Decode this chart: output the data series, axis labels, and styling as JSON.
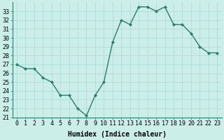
{
  "x": [
    0,
    1,
    2,
    3,
    4,
    5,
    6,
    7,
    8,
    9,
    10,
    11,
    12,
    13,
    14,
    15,
    16,
    17,
    18,
    19,
    20,
    21,
    22,
    23
  ],
  "y": [
    27,
    26.5,
    26.5,
    25.5,
    25,
    23.5,
    23.5,
    22,
    21.2,
    23.5,
    25,
    29.5,
    32,
    31.5,
    33.5,
    33.5,
    33,
    33.5,
    31.5,
    31.5,
    30.5,
    29,
    28.3,
    28.3
  ],
  "line_color": "#2a7d6e",
  "marker": "D",
  "marker_size": 2,
  "bg_color": "#cceee8",
  "grid_color": "#b0ddd5",
  "xlabel": "Humidex (Indice chaleur)",
  "xlim": [
    -0.5,
    23.5
  ],
  "ylim": [
    21,
    34
  ],
  "yticks": [
    21,
    22,
    23,
    24,
    25,
    26,
    27,
    28,
    29,
    30,
    31,
    32,
    33
  ],
  "xtick_labels": [
    "0",
    "1",
    "2",
    "3",
    "4",
    "5",
    "6",
    "7",
    "8",
    "9",
    "10",
    "11",
    "12",
    "13",
    "14",
    "15",
    "16",
    "17",
    "18",
    "19",
    "20",
    "21",
    "22",
    "23"
  ],
  "tick_fontsize": 6,
  "xlabel_fontsize": 7,
  "linewidth": 1.0
}
